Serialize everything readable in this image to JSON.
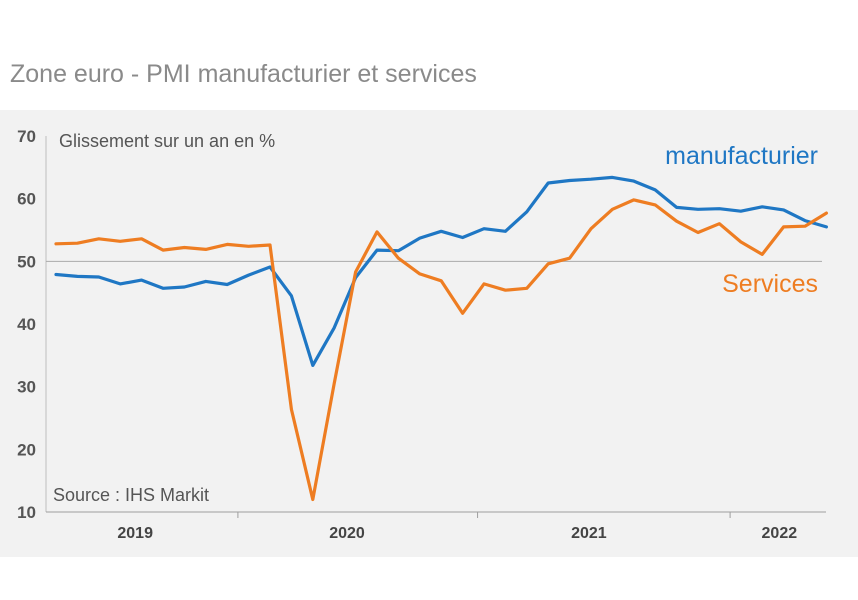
{
  "title": "Zone euro - PMI manufacturier et services",
  "chart_data": {
    "type": "line",
    "title": "Zone euro - PMI manufacturier et services",
    "subtitle": "Glissement sur un an en %",
    "source": "Source : IHS Markit",
    "ylim": [
      10,
      70
    ],
    "yticks": [
      10,
      20,
      30,
      40,
      50,
      60,
      70
    ],
    "reference_line": 50,
    "x_start": "2019-01",
    "xtick_labels": [
      "2019",
      "2020",
      "2021",
      "2022"
    ],
    "series": [
      {
        "name": "manufacturier",
        "color": "#1f77c4",
        "values": [
          47.9,
          47.6,
          47.5,
          46.4,
          47.0,
          45.7,
          45.9,
          46.8,
          46.3,
          47.8,
          49.1,
          44.5,
          33.4,
          39.4,
          47.4,
          51.8,
          51.7,
          53.7,
          54.8,
          53.8,
          55.2,
          54.8,
          57.9,
          62.5,
          62.9,
          63.1,
          63.4,
          62.8,
          61.4,
          58.6,
          58.3,
          58.4,
          58.0,
          58.7,
          58.2,
          56.5,
          55.5
        ]
      },
      {
        "name": "Services",
        "color": "#ee7d22",
        "values": [
          52.8,
          52.9,
          53.6,
          53.2,
          53.6,
          51.8,
          52.2,
          51.9,
          52.7,
          52.4,
          52.6,
          26.4,
          12.0,
          30.5,
          48.3,
          54.7,
          50.5,
          48.0,
          46.9,
          41.7,
          46.4,
          45.4,
          45.7,
          49.6,
          50.5,
          55.2,
          58.3,
          59.8,
          59.0,
          56.4,
          54.6,
          56.0,
          53.1,
          51.1,
          55.5,
          55.6,
          57.7
        ]
      }
    ]
  }
}
